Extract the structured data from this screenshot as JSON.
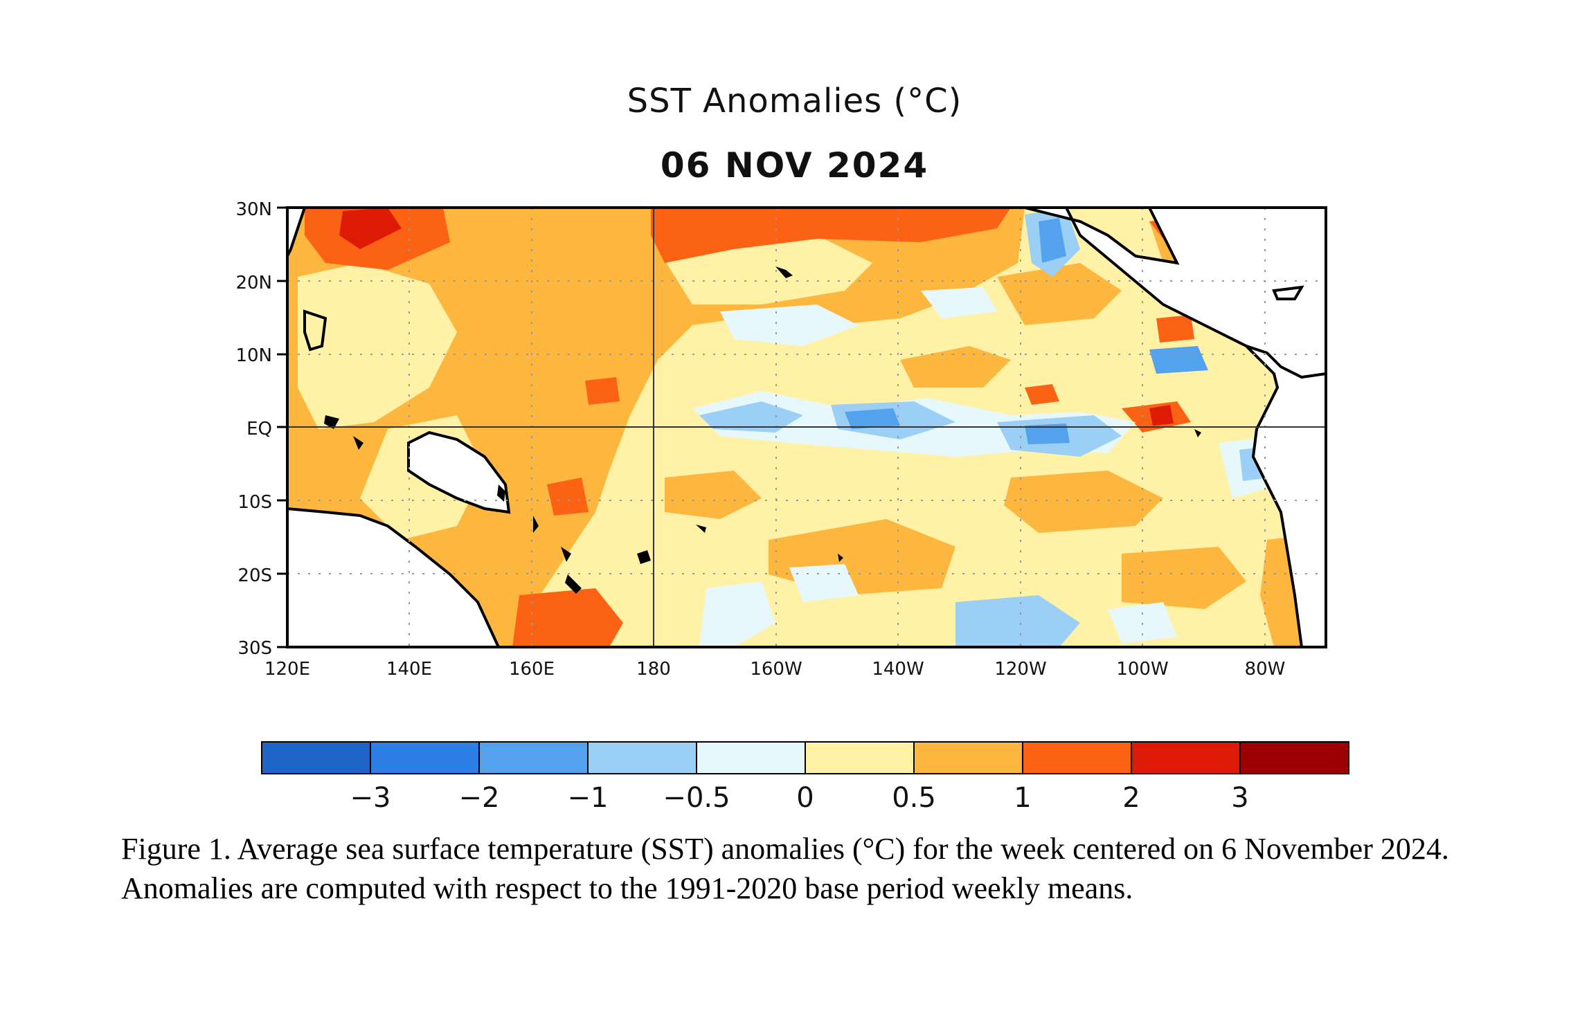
{
  "map": {
    "title": "SST Anomalies (°C)",
    "date": "06 NOV 2024",
    "lat_labels": [
      "30N",
      "20N",
      "10N",
      "EQ",
      "10S",
      "20S",
      "30S"
    ],
    "lon_labels": [
      "120E",
      "140E",
      "160E",
      "180",
      "160W",
      "140W",
      "120W",
      "100W",
      "80W"
    ],
    "extent": {
      "lon_min": 120,
      "lon_max": 290,
      "lat_min": -30,
      "lat_max": 30
    }
  },
  "colorbar": {
    "bins": [
      {
        "color": "#1f64c8"
      },
      {
        "color": "#2d7fe6"
      },
      {
        "color": "#52a2ee"
      },
      {
        "color": "#9ccff6"
      },
      {
        "color": "#e6f8fb"
      },
      {
        "color": "#fff2a6"
      },
      {
        "color": "#fdb73e"
      },
      {
        "color": "#fc6214"
      },
      {
        "color": "#dc1a05"
      },
      {
        "color": "#9c0000"
      }
    ],
    "labels": [
      "−3",
      "−2",
      "−1",
      "−0.5",
      "0",
      "0.5",
      "1",
      "2",
      "3"
    ]
  },
  "caption": "Figure 1. Average sea surface temperature (SST) anomalies (°C) for the week centered on 6 November 2024.  Anomalies are computed with respect to the 1991-2020 base period weekly means."
}
